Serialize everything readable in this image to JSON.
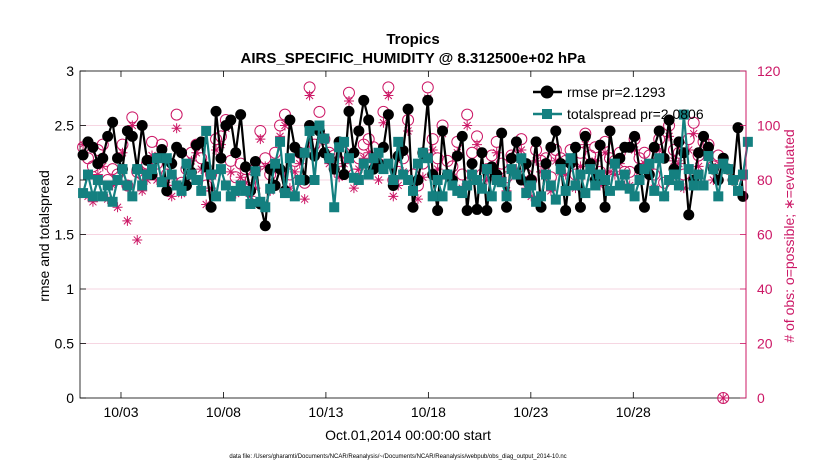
{
  "chart_data": {
    "type": "line",
    "title": "Tropics",
    "subtitle": "AIRS_SPECIFIC_HUMIDITY @ 8.312500e+02 hPa",
    "xlabel": "Oct.01,2014 00:00:00 start",
    "ylabel": "rmse and totalspread",
    "y2label": "# of obs: o=possible; ∗=evaluated",
    "xlim": [
      1,
      33.5
    ],
    "ylim": [
      0,
      3
    ],
    "y2lim": [
      0,
      120
    ],
    "xticks": [
      {
        "value": 3,
        "label": "10/03"
      },
      {
        "value": 8,
        "label": "10/08"
      },
      {
        "value": 13,
        "label": "10/13"
      },
      {
        "value": 18,
        "label": "10/18"
      },
      {
        "value": 23,
        "label": "10/23"
      },
      {
        "value": 28,
        "label": "10/28"
      }
    ],
    "yticks": [
      0,
      0.5,
      1,
      1.5,
      2,
      2.5,
      3
    ],
    "y2ticks": [
      0,
      20,
      40,
      60,
      80,
      100,
      120
    ],
    "colors": {
      "rmse": "#000000",
      "totalspread": "#148080",
      "obs": "#cc1866"
    },
    "legend": {
      "location": "top-right",
      "entries": [
        "rmse pr=2.1293",
        "totalspread pr=2.0806"
      ]
    },
    "series": [
      {
        "name": "rmse pr=2.1293",
        "values": [
          2.23,
          2.35,
          2.3,
          2.15,
          2.2,
          2.4,
          2.53,
          2.2,
          2.1,
          2.45,
          2.4,
          2.1,
          2.5,
          2.18,
          2.05,
          2.2,
          2.28,
          1.9,
          2.15,
          2.3,
          2.25,
          1.95,
          2.07,
          2.32,
          2.35,
          2.12,
          1.75,
          2.63,
          2.2,
          2.5,
          2.55,
          2.25,
          2.6,
          2.12,
          1.9,
          2.17,
          1.78,
          1.58,
          2.1,
          1.95,
          2.1,
          1.9,
          2.55,
          2.3,
          2.25,
          2.0,
          2.5,
          2.22,
          2.45,
          2.25,
          2.2,
          2.1,
          2.35,
          2.05,
          2.63,
          2.25,
          2.45,
          2.73,
          2.55,
          2.1,
          2.15,
          2.3,
          2.6,
          1.95,
          2.22,
          2.27,
          2.65,
          1.75,
          2.0,
          2.25,
          2.73,
          2.05,
          1.72,
          2.45,
          2.05,
          2.0,
          2.22,
          2.4,
          1.72,
          2.15,
          1.73,
          2.25,
          1.72,
          2.12,
          2.05,
          2.43,
          1.75,
          2.2,
          2.35,
          2.0,
          2.15,
          2.0,
          2.35,
          1.75,
          2.15,
          2.3,
          2.45,
          2.15,
          1.72,
          2.15,
          2.3,
          1.75,
          2.4,
          2.15,
          2.0,
          2.32,
          1.75,
          2.45,
          2.15,
          2.2,
          2.3,
          2.3,
          2.4,
          2.1,
          1.75,
          2.05,
          2.3,
          2.45,
          2.2,
          2.55,
          2.1,
          2.35,
          2.25,
          1.68,
          2.0,
          2.25,
          2.4,
          2.3,
          2.1,
          2.0,
          2.2,
          2.1,
          2.0,
          2.48,
          1.85
        ]
      },
      {
        "name": "totalspread pr=2.0806",
        "values": [
          1.88,
          2.05,
          1.85,
          2.0,
          1.85,
          1.95,
          1.8,
          2.0,
          2.1,
          1.95,
          1.85,
          2.1,
          1.95,
          2.05,
          2.1,
          2.2,
          1.98,
          2.2,
          2.05,
          1.95,
          1.9,
          2.15,
          2.05,
          2.0,
          1.9,
          2.45,
          2.05,
          1.85,
          2.1,
          1.95,
          1.85,
          1.9,
          1.95,
          1.9,
          1.78,
          2.08,
          1.8,
          1.75,
          1.92,
          2.15,
          2.35,
          1.88,
          2.2,
          1.85,
          2.0,
          2.25,
          2.45,
          2.0,
          2.5,
          2.38,
          2.2,
          1.75,
          2.3,
          2.35,
          2.2,
          2.02,
          2.0,
          2.15,
          2.05,
          2.2,
          2.25,
          2.1,
          2.15,
          2.0,
          2.35,
          2.05,
          2.0,
          1.9,
          2.15,
          2.25,
          2.2,
          1.85,
          2.0,
          1.85,
          2.05,
          1.95,
          1.9,
          1.88,
          1.95,
          2.05,
          2.0,
          1.92,
          2.1,
          1.85,
          2.0,
          1.98,
          1.85,
          2.1,
          2.05,
          2.2,
          1.88,
          1.95,
          1.8,
          1.85,
          2.05,
          1.95,
          1.82,
          2.1,
          1.9,
          2.2,
          1.95,
          2.05,
          1.88,
          2.1,
          1.95,
          2.05,
          2.0,
          1.9,
          2.15,
          1.95,
          2.05,
          1.92,
          1.85,
          2.0,
          2.1,
          2.15,
          1.9,
          2.2,
          1.85,
          2.0,
          2.05,
          1.95,
          2.6,
          2.1,
          1.95,
          2.05,
          1.95,
          2.22,
          2.1,
          1.85,
          2.15,
          2.1,
          2.0,
          1.9,
          2.05,
          2.35
        ]
      },
      {
        "name": "obs possible",
        "values": [
          92,
          88,
          85,
          91,
          93,
          80,
          84,
          82,
          93,
          78,
          103,
          83,
          82,
          86,
          94,
          86,
          93,
          82,
          80,
          104,
          79,
          84,
          90,
          93,
          88,
          78,
          82,
          95,
          96,
          102,
          87,
          81,
          86,
          84,
          80,
          84,
          98,
          88,
          82,
          90,
          100,
          104,
          82,
          87,
          90,
          79,
          114,
          93,
          105,
          95,
          90,
          89,
          87,
          90,
          112,
          82,
          88,
          93,
          95,
          92,
          86,
          105,
          114,
          80,
          83,
          88,
          102,
          82,
          78,
          86,
          114,
          95,
          88,
          100,
          87,
          85,
          94,
          82,
          104,
          90,
          96,
          82,
          84,
          89,
          94,
          86,
          81,
          89,
          89,
          95,
          82,
          80,
          91,
          87,
          88,
          81,
          91,
          88,
          87,
          91,
          82,
          90,
          97,
          89,
          92,
          83,
          94,
          88,
          87,
          90,
          83,
          83,
          95,
          88,
          90,
          89,
          82,
          95,
          79,
          100,
          91,
          90,
          82,
          95,
          101,
          89,
          94,
          93,
          85,
          89,
          0
        ]
      },
      {
        "name": "obs evaluated",
        "values": [
          93,
          74,
          72,
          82,
          85,
          73,
          78,
          70,
          90,
          65,
          100,
          58,
          76,
          80,
          89,
          80,
          89,
          78,
          74,
          99,
          75,
          79,
          87,
          90,
          84,
          71,
          77,
          91,
          93,
          99,
          83,
          75,
          81,
          79,
          74,
          77,
          95,
          85,
          76,
          86,
          96,
          100,
          77,
          83,
          86,
          73,
          111,
          90,
          100,
          90,
          86,
          83,
          81,
          86,
          109,
          77,
          84,
          88,
          90,
          87,
          80,
          101,
          111,
          74,
          78,
          83,
          98,
          77,
          73,
          81,
          110,
          91,
          84,
          97,
          82,
          81,
          90,
          77,
          100,
          86,
          93,
          77,
          80,
          84,
          90,
          81,
          76,
          84,
          84,
          91,
          77,
          74,
          87,
          83,
          83,
          76,
          87,
          83,
          82,
          87,
          77,
          85,
          93,
          85,
          87,
          78,
          90,
          83,
          82,
          86,
          78,
          78,
          91,
          83,
          86,
          84,
          77,
          91,
          74,
          96,
          87,
          86,
          77,
          91,
          97,
          85,
          90,
          89,
          80,
          85,
          0
        ]
      }
    ]
  },
  "footnote": "data file: /Users/gharamti/Documents/NCAR/Reanalysis/~/Documents/NCAR/Reanalysis/webpub/obs_diag_output_2014-10.nc"
}
